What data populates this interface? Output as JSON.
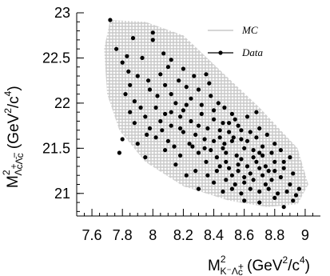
{
  "chart_data": {
    "type": "scatter",
    "xlabel": {
      "main": "M",
      "sup": "2",
      "sub": "K⁻Λ",
      "sub_sup": "+",
      "sub_end": "c",
      "unit": " (GeV",
      "unit_sup": "2",
      "unit_mid": "/c",
      "unit_sup2": "4",
      "unit_end": ")"
    },
    "ylabel": {
      "main": "M",
      "sup": "2",
      "sub": "Λ",
      "sub_sup": "+",
      "sub_mid": "c",
      "sub_bar": "Λ̄",
      "sub_sup2": "−",
      "sub_end": "c",
      "unit": " (GeV",
      "unit_sup": "2",
      "unit_mid": "/c",
      "unit_sup2": "4",
      "unit_end": ")"
    },
    "xlim": [
      7.5,
      9.1
    ],
    "ylim": [
      20.75,
      23.0
    ],
    "x_ticks": [
      "7.6",
      "7.8",
      "8",
      "8.2",
      "8.4",
      "8.6",
      "8.8",
      "9"
    ],
    "y_ticks": [
      "21",
      "21.5",
      "22",
      "22.5",
      "23"
    ],
    "legend": {
      "placement": "top-right",
      "entries": [
        {
          "name": "MC",
          "color": "#c8c8c8",
          "style": "line"
        },
        {
          "name": "Data",
          "color": "#000000",
          "style": "marker"
        }
      ]
    },
    "mc_band": {
      "color": "#c8c8c8",
      "polygon": [
        [
          7.72,
          22.92
        ],
        [
          7.95,
          22.9
        ],
        [
          8.2,
          22.75
        ],
        [
          8.45,
          22.35
        ],
        [
          8.7,
          21.95
        ],
        [
          8.95,
          21.5
        ],
        [
          9.02,
          21.1
        ],
        [
          8.95,
          20.88
        ],
        [
          8.75,
          20.85
        ],
        [
          8.5,
          20.92
        ],
        [
          8.2,
          21.08
        ],
        [
          7.95,
          21.35
        ],
        [
          7.78,
          21.7
        ],
        [
          7.7,
          22.1
        ],
        [
          7.68,
          22.6
        ]
      ]
    },
    "series": [
      {
        "name": "Data",
        "color": "#000000",
        "points": [
          [
            7.72,
            22.92
          ],
          [
            7.76,
            22.6
          ],
          [
            7.83,
            22.52
          ],
          [
            7.87,
            22.72
          ],
          [
            8.0,
            22.78
          ],
          [
            8.0,
            22.7
          ],
          [
            7.8,
            22.45
          ],
          [
            7.84,
            22.35
          ],
          [
            7.93,
            22.5
          ],
          [
            8.07,
            22.55
          ],
          [
            8.12,
            22.48
          ],
          [
            7.85,
            22.2
          ],
          [
            7.9,
            22.3
          ],
          [
            7.97,
            22.25
          ],
          [
            8.05,
            22.32
          ],
          [
            8.1,
            22.4
          ],
          [
            8.2,
            22.38
          ],
          [
            8.35,
            22.32
          ],
          [
            7.82,
            22.1
          ],
          [
            7.88,
            22.02
          ],
          [
            7.92,
            21.95
          ],
          [
            7.98,
            22.15
          ],
          [
            8.03,
            22.08
          ],
          [
            8.08,
            22.2
          ],
          [
            8.12,
            22.1
          ],
          [
            8.17,
            22.25
          ],
          [
            8.22,
            22.18
          ],
          [
            8.27,
            22.3
          ],
          [
            8.3,
            22.15
          ],
          [
            8.37,
            22.22
          ],
          [
            7.85,
            21.9
          ],
          [
            7.95,
            21.85
          ],
          [
            8.02,
            21.95
          ],
          [
            8.08,
            21.88
          ],
          [
            8.15,
            22.0
          ],
          [
            8.2,
            21.92
          ],
          [
            8.25,
            22.05
          ],
          [
            8.32,
            21.98
          ],
          [
            8.38,
            22.08
          ],
          [
            8.43,
            22.0
          ],
          [
            7.88,
            21.78
          ],
          [
            7.98,
            21.72
          ],
          [
            8.05,
            21.8
          ],
          [
            8.12,
            21.75
          ],
          [
            8.18,
            21.85
          ],
          [
            8.25,
            21.8
          ],
          [
            8.32,
            21.88
          ],
          [
            8.4,
            21.82
          ],
          [
            8.47,
            21.95
          ],
          [
            8.52,
            21.88
          ],
          [
            7.8,
            21.6
          ],
          [
            7.9,
            21.55
          ],
          [
            8.02,
            21.62
          ],
          [
            8.1,
            21.58
          ],
          [
            8.2,
            21.68
          ],
          [
            8.28,
            21.65
          ],
          [
            8.36,
            21.72
          ],
          [
            8.44,
            21.7
          ],
          [
            8.5,
            21.78
          ],
          [
            8.56,
            21.75
          ],
          [
            8.62,
            21.85
          ],
          [
            8.68,
            21.9
          ],
          [
            7.78,
            21.45
          ],
          [
            7.95,
            21.4
          ],
          [
            8.08,
            21.48
          ],
          [
            8.18,
            21.42
          ],
          [
            8.26,
            21.52
          ],
          [
            8.34,
            21.5
          ],
          [
            8.4,
            21.58
          ],
          [
            8.47,
            21.55
          ],
          [
            8.53,
            21.62
          ],
          [
            8.58,
            21.6
          ],
          [
            8.64,
            21.68
          ],
          [
            8.7,
            21.72
          ],
          [
            8.75,
            21.65
          ],
          [
            8.8,
            21.55
          ],
          [
            8.35,
            21.35
          ],
          [
            8.42,
            21.4
          ],
          [
            8.48,
            21.45
          ],
          [
            8.55,
            21.42
          ],
          [
            8.6,
            21.5
          ],
          [
            8.66,
            21.48
          ],
          [
            8.72,
            21.52
          ],
          [
            8.78,
            21.45
          ],
          [
            8.84,
            21.48
          ],
          [
            8.9,
            21.4
          ],
          [
            8.28,
            21.25
          ],
          [
            8.36,
            21.2
          ],
          [
            8.44,
            21.3
          ],
          [
            8.5,
            21.28
          ],
          [
            8.56,
            21.32
          ],
          [
            8.62,
            21.3
          ],
          [
            8.68,
            21.35
          ],
          [
            8.74,
            21.3
          ],
          [
            8.8,
            21.35
          ],
          [
            8.86,
            21.28
          ],
          [
            8.92,
            21.22
          ],
          [
            8.4,
            21.12
          ],
          [
            8.48,
            21.15
          ],
          [
            8.54,
            21.1
          ],
          [
            8.6,
            21.18
          ],
          [
            8.66,
            21.15
          ],
          [
            8.72,
            21.2
          ],
          [
            8.78,
            21.15
          ],
          [
            8.84,
            21.18
          ],
          [
            8.9,
            21.1
          ],
          [
            8.96,
            21.05
          ],
          [
            8.46,
            21.02
          ],
          [
            8.52,
            21.05
          ],
          [
            8.58,
            21.0
          ],
          [
            8.64,
            21.05
          ],
          [
            8.7,
            21.02
          ],
          [
            8.76,
            21.05
          ],
          [
            8.82,
            21.0
          ],
          [
            8.88,
            21.02
          ],
          [
            8.94,
            20.98
          ],
          [
            8.6,
            20.92
          ],
          [
            8.7,
            20.9
          ],
          [
            8.8,
            20.95
          ],
          [
            8.86,
            20.85
          ],
          [
            8.92,
            20.92
          ],
          [
            8.3,
            21.05
          ],
          [
            8.22,
            21.2
          ],
          [
            8.15,
            21.32
          ],
          [
            8.46,
            21.78
          ],
          [
            8.5,
            21.68
          ],
          [
            8.54,
            21.82
          ],
          [
            8.58,
            21.7
          ],
          [
            8.44,
            21.62
          ],
          [
            8.52,
            21.58
          ],
          [
            8.46,
            21.5
          ],
          [
            8.62,
            21.58
          ],
          [
            8.68,
            21.62
          ],
          [
            8.56,
            21.25
          ],
          [
            8.64,
            21.22
          ],
          [
            8.7,
            21.28
          ],
          [
            8.76,
            21.25
          ],
          [
            8.52,
            21.2
          ],
          [
            8.58,
            21.38
          ],
          [
            8.66,
            21.4
          ],
          [
            8.72,
            21.42
          ],
          [
            8.42,
            21.25
          ],
          [
            8.38,
            21.48
          ],
          [
            8.3,
            21.45
          ],
          [
            8.24,
            21.55
          ],
          [
            8.14,
            21.52
          ],
          [
            8.06,
            21.7
          ],
          [
            7.96,
            21.65
          ],
          [
            8.18,
            21.72
          ],
          [
            8.3,
            21.75
          ],
          [
            8.6,
            21.12
          ],
          [
            8.74,
            21.1
          ],
          [
            8.8,
            21.25
          ],
          [
            8.86,
            21.35
          ],
          [
            8.7,
            21.45
          ],
          [
            8.48,
            21.35
          ],
          [
            8.34,
            21.6
          ],
          [
            8.4,
            21.92
          ],
          [
            8.22,
            21.98
          ],
          [
            8.12,
            21.9
          ]
        ]
      }
    ]
  }
}
